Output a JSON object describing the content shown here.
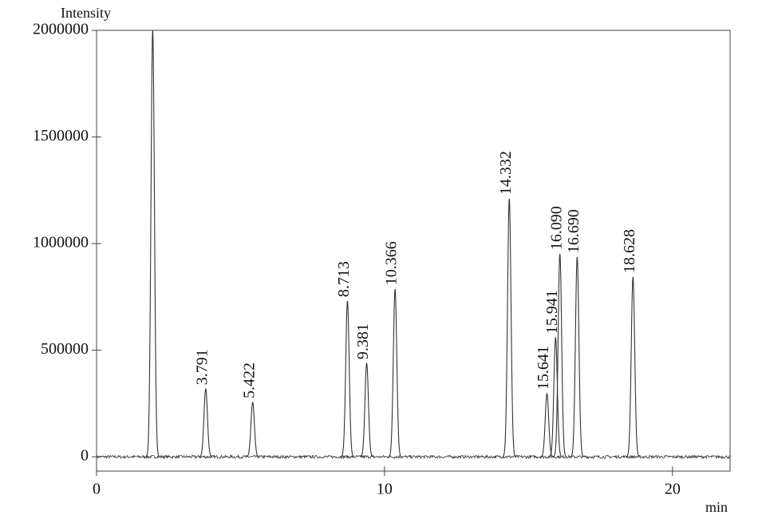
{
  "chart_data": {
    "type": "chromatogram",
    "y_label": "Intensity",
    "x_label": "min",
    "x": [
      1.95,
      3.791,
      5.422,
      8.713,
      9.381,
      10.366,
      14.332,
      15.641,
      15.941,
      16.09,
      16.69,
      18.628
    ],
    "values": [
      2000000,
      318000,
      255000,
      730000,
      438000,
      786000,
      1210000,
      296000,
      558000,
      951000,
      936000,
      843000
    ],
    "peak_labels": [
      null,
      "3.791",
      "5.422",
      "8.713",
      "9.381",
      "10.366",
      "14.332",
      "15.641",
      "15.941",
      "16.090",
      "16.690",
      "18.628"
    ],
    "xlim": [
      0,
      22
    ],
    "ylim": [
      -67000,
      2000000
    ],
    "xticks": [
      0,
      10,
      20
    ],
    "yticks": [
      0,
      500000,
      1000000,
      1500000,
      2000000
    ],
    "color": "#333333"
  }
}
